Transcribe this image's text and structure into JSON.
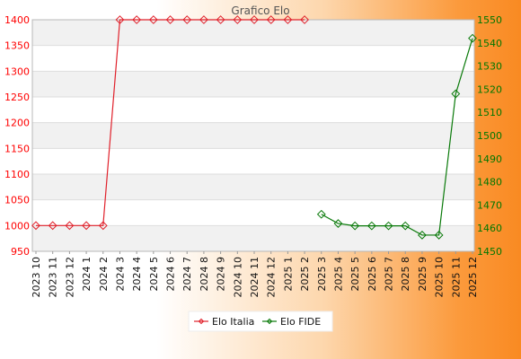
{
  "chart_data": {
    "type": "line",
    "title": "Grafico Elo",
    "categories": [
      "2023 10",
      "2023 11",
      "2023 12",
      "2024 1",
      "2024 2",
      "2024 3",
      "2024 4",
      "2024 5",
      "2024 6",
      "2024 7",
      "2024 8",
      "2024 9",
      "2024 10",
      "2024 11",
      "2024 12",
      "2025 1",
      "2025 2",
      "2025 3",
      "2025 4",
      "2025 5",
      "2025 6",
      "2025 7",
      "2025 8",
      "2025 9",
      "2025 10",
      "2025 11",
      "2025 12"
    ],
    "left_axis": {
      "ylim": [
        950,
        1400
      ],
      "ticks": [
        950,
        1000,
        1050,
        1100,
        1150,
        1200,
        1250,
        1300,
        1350,
        1400
      ],
      "color": "#ff0000"
    },
    "right_axis": {
      "ylim": [
        1450,
        1550
      ],
      "ticks": [
        1450,
        1460,
        1470,
        1480,
        1490,
        1500,
        1510,
        1520,
        1530,
        1540,
        1550
      ],
      "color": "#007700"
    },
    "series": [
      {
        "name": "Elo Italia",
        "axis": "left",
        "color": "#e0202a",
        "values": [
          1000,
          1000,
          1000,
          1000,
          1000,
          1400,
          1400,
          1400,
          1400,
          1400,
          1400,
          1400,
          1400,
          1400,
          1400,
          1400,
          1400,
          null,
          null,
          null,
          null,
          null,
          null,
          null,
          null,
          null,
          null
        ]
      },
      {
        "name": "Elo FIDE",
        "axis": "right",
        "color": "#0a7a0a",
        "values": [
          null,
          null,
          null,
          null,
          null,
          null,
          null,
          null,
          null,
          null,
          null,
          null,
          null,
          null,
          null,
          null,
          null,
          1466,
          1462,
          1461,
          1461,
          1461,
          1461,
          1457,
          1457,
          1518,
          1542
        ]
      }
    ],
    "grid": true,
    "legend_position": "bottom-center"
  }
}
